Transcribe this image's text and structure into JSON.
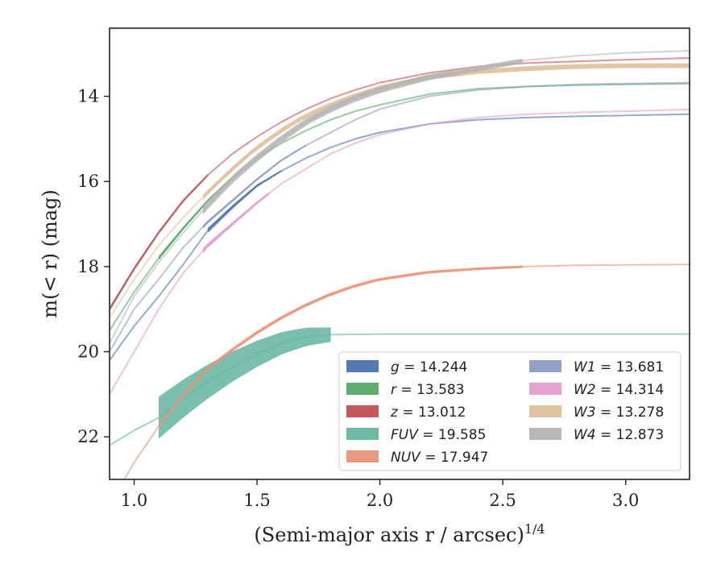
{
  "chart_data": {
    "type": "line",
    "title": "",
    "xlabel": "(Semi-major axis r / arcsec)",
    "xlabel_exponent": "1/4",
    "ylabel": "m(< r) (mag)",
    "xlim": [
      0.9,
      3.26
    ],
    "ylim": [
      23.0,
      12.4
    ],
    "y_inverted": true,
    "xticks": [
      1.0,
      1.5,
      2.0,
      2.5,
      3.0
    ],
    "xtick_labels": [
      "1.0",
      "1.5",
      "2.0",
      "2.5",
      "3.0"
    ],
    "yticks": [
      14,
      16,
      18,
      20,
      22
    ],
    "ytick_labels": [
      "14",
      "16",
      "18",
      "20",
      "22"
    ],
    "grid": false,
    "legend_position": "lower-right",
    "series": [
      {
        "name": "g = 14.244",
        "label_italic": "g",
        "label_value": " = 14.244",
        "color": "#4c72b0",
        "x": [
          0.9,
          1.0,
          1.1,
          1.2,
          1.3,
          1.4,
          1.5,
          1.6,
          1.7,
          1.8,
          1.9,
          2.0,
          2.2,
          2.4,
          2.6,
          2.8,
          3.0,
          3.26
        ],
        "y": [
          20.2,
          19.4,
          18.7,
          17.95,
          17.15,
          16.6,
          16.1,
          15.75,
          15.45,
          15.2,
          15.0,
          14.85,
          14.65,
          14.55,
          14.5,
          14.47,
          14.45,
          14.42
        ],
        "band_x": [
          1.3,
          1.6
        ],
        "band_width": [
          6,
          2
        ]
      },
      {
        "name": "r = 13.583",
        "label_italic": "r",
        "label_value": " = 13.583",
        "color": "#55a868",
        "x": [
          0.9,
          1.0,
          1.1,
          1.2,
          1.3,
          1.4,
          1.5,
          1.6,
          1.7,
          1.8,
          1.9,
          2.0,
          2.2,
          2.4,
          2.6,
          2.8,
          3.0,
          3.26
        ],
        "y": [
          19.5,
          18.6,
          17.8,
          17.1,
          16.45,
          15.9,
          15.45,
          15.1,
          14.8,
          14.55,
          14.35,
          14.2,
          13.95,
          13.82,
          13.77,
          13.74,
          13.72,
          13.7
        ],
        "band_x": [
          1.1,
          1.4
        ],
        "band_width": [
          5,
          2
        ]
      },
      {
        "name": "z = 13.012",
        "label_italic": "z",
        "label_value": " = 13.012",
        "color": "#c44e52",
        "x": [
          0.9,
          1.0,
          1.1,
          1.2,
          1.3,
          1.4,
          1.5,
          1.6,
          1.7,
          1.8,
          1.9,
          2.0,
          2.2,
          2.4,
          2.6,
          2.8,
          3.0,
          3.26
        ],
        "y": [
          19.0,
          18.05,
          17.2,
          16.45,
          15.85,
          15.35,
          14.95,
          14.6,
          14.3,
          14.05,
          13.85,
          13.68,
          13.45,
          13.3,
          13.22,
          13.18,
          13.14,
          13.1
        ],
        "band_x": [
          0.9,
          1.3
        ],
        "band_width": [
          5,
          3
        ]
      },
      {
        "name": "FUV = 19.585",
        "label_italic": "FUV",
        "label_value": " = 19.585",
        "color": "#64b5a0",
        "x": [
          0.9,
          1.0,
          1.1,
          1.2,
          1.3,
          1.4,
          1.5,
          1.6,
          1.7,
          1.8,
          2.0,
          2.4,
          2.8,
          3.26
        ],
        "y": [
          22.2,
          21.85,
          21.55,
          21.1,
          20.7,
          20.35,
          20.05,
          19.8,
          19.65,
          19.6,
          19.585,
          19.585,
          19.585,
          19.585
        ],
        "band_x": [
          1.1,
          1.8
        ],
        "band_width": [
          52,
          18
        ]
      },
      {
        "name": "NUV = 17.947",
        "label_italic": "NUV",
        "label_value": " = 17.947",
        "color": "#e8957a",
        "x": [
          0.9,
          1.0,
          1.1,
          1.2,
          1.3,
          1.4,
          1.5,
          1.6,
          1.7,
          1.8,
          1.9,
          2.0,
          2.2,
          2.4,
          2.6,
          2.8,
          3.0,
          3.26
        ],
        "y": [
          23.6,
          22.6,
          21.75,
          21.0,
          20.4,
          19.95,
          19.55,
          19.2,
          18.9,
          18.65,
          18.45,
          18.3,
          18.13,
          18.05,
          18.0,
          17.97,
          17.96,
          17.95
        ],
        "band_x": [
          1.1,
          2.58
        ],
        "band_width": [
          5,
          3
        ]
      },
      {
        "name": "W1 = 13.681",
        "label_italic": "W1",
        "label_value": " = 13.681",
        "color": "#8c9bc5",
        "x": [
          0.9,
          1.0,
          1.1,
          1.2,
          1.3,
          1.4,
          1.5,
          1.6,
          1.7,
          1.8,
          1.9,
          2.0,
          2.2,
          2.4,
          2.6,
          2.8,
          3.0,
          3.26
        ],
        "y": [
          20.0,
          19.0,
          18.3,
          17.55,
          16.95,
          16.45,
          15.95,
          15.5,
          15.15,
          14.85,
          14.55,
          14.3,
          14.0,
          13.85,
          13.77,
          13.72,
          13.7,
          13.68
        ],
        "band_x": [
          1.28,
          1.7
        ],
        "band_width": [
          4,
          2
        ]
      },
      {
        "name": "W2 = 14.314",
        "label_italic": "W2",
        "label_value": " = 14.314",
        "color": "#e39ec9",
        "x": [
          0.9,
          1.0,
          1.1,
          1.2,
          1.3,
          1.4,
          1.5,
          1.6,
          1.7,
          1.8,
          1.9,
          2.0,
          2.2,
          2.4,
          2.6,
          2.8,
          3.0,
          3.26
        ],
        "y": [
          21.0,
          20.0,
          19.0,
          18.15,
          17.5,
          17.0,
          16.5,
          16.05,
          15.7,
          15.35,
          15.1,
          14.9,
          14.65,
          14.5,
          14.42,
          14.38,
          14.35,
          14.31
        ],
        "band_x": [
          1.28,
          1.55
        ],
        "band_width": [
          6,
          3
        ]
      },
      {
        "name": "W3 = 13.278",
        "label_italic": "W3",
        "label_value": " = 13.278",
        "color": "#dfc09a",
        "x": [
          0.9,
          1.0,
          1.1,
          1.2,
          1.3,
          1.4,
          1.5,
          1.6,
          1.7,
          1.8,
          1.9,
          2.0,
          2.2,
          2.4,
          2.6,
          2.8,
          3.0,
          3.26
        ],
        "y": [
          19.2,
          18.3,
          17.5,
          16.85,
          16.25,
          15.7,
          15.2,
          14.8,
          14.45,
          14.2,
          13.98,
          13.8,
          13.55,
          13.42,
          13.35,
          13.3,
          13.28,
          13.28
        ],
        "band_x": [
          1.28,
          3.26
        ],
        "band_width": [
          6,
          6
        ]
      },
      {
        "name": "W4 = 12.873",
        "label_italic": "W4",
        "label_value": " = 12.873",
        "color": "#b4b4b4",
        "x": [
          0.9,
          1.0,
          1.1,
          1.2,
          1.3,
          1.4,
          1.5,
          1.6,
          1.7,
          1.8,
          1.9,
          2.0,
          2.2,
          2.4,
          2.6,
          2.8,
          3.0,
          3.26
        ],
        "y": [
          19.8,
          18.7,
          17.9,
          17.2,
          16.55,
          15.95,
          15.45,
          15.0,
          14.6,
          14.3,
          14.05,
          13.85,
          13.55,
          13.35,
          13.15,
          13.05,
          12.98,
          12.93
        ],
        "band_x": [
          1.28,
          2.58
        ],
        "band_width": [
          10,
          6
        ]
      }
    ]
  }
}
